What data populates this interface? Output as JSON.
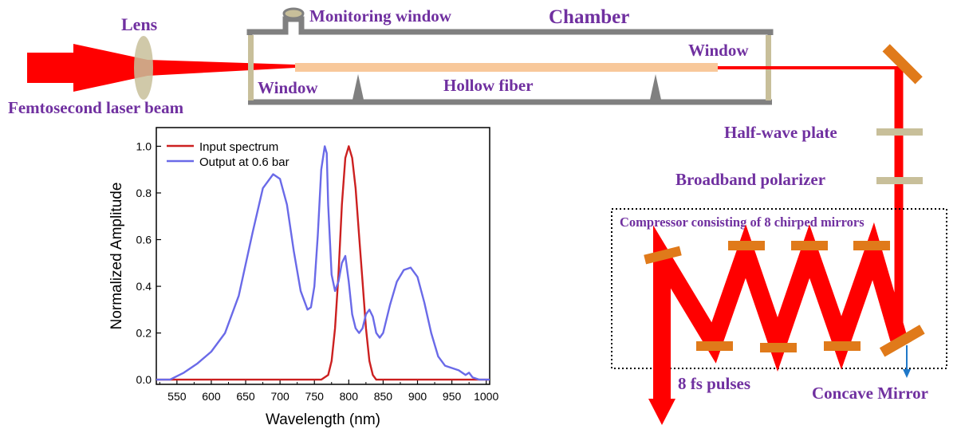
{
  "labels": {
    "lens": "Lens",
    "laser_beam": "Femtosecond laser beam",
    "monitoring_window": "Monitoring window",
    "chamber": "Chamber",
    "window_left": "Window",
    "window_right": "Window",
    "hollow_fiber": "Hollow fiber",
    "half_wave_plate": "Half-wave plate",
    "polarizer": "Broadband polarizer",
    "compressor": "Compressor consisting of 8 chirped mirrors",
    "output_pulses": "8 fs pulses",
    "concave_mirror": "Concave Mirror"
  },
  "colors": {
    "label": "#7030a0",
    "beam": "#ff0000",
    "fiber": "#f8c89a",
    "mirror": "#e07a1a",
    "chamber_wall": "#808080",
    "window": "#c8bf9a",
    "input_series": "#cc2020",
    "output_series": "#6a6ae8",
    "arrow": "#1f78c8"
  },
  "chart_data": {
    "type": "line",
    "xlabel": "Wavelength (nm)",
    "ylabel": "Normalized Amplitude",
    "xlim": [
      520,
      1005
    ],
    "ylim": [
      -0.02,
      1.08
    ],
    "xticks": [
      550,
      600,
      650,
      700,
      750,
      800,
      850,
      900,
      950,
      1000
    ],
    "yticks": [
      0.0,
      0.2,
      0.4,
      0.6,
      0.8,
      1.0
    ],
    "ytick_labels": [
      "0.0",
      "0.2",
      "0.4",
      "0.6",
      "0.8",
      "1.0"
    ],
    "legend_position": "top-left",
    "series": [
      {
        "name": "Input spectrum",
        "color": "#cc2020",
        "x": [
          520,
          760,
          770,
          775,
          780,
          785,
          790,
          795,
          800,
          805,
          810,
          815,
          820,
          825,
          830,
          835,
          840,
          1005
        ],
        "y": [
          0.0,
          0.0,
          0.02,
          0.08,
          0.22,
          0.45,
          0.75,
          0.95,
          1.0,
          0.95,
          0.82,
          0.62,
          0.42,
          0.22,
          0.08,
          0.02,
          0.0,
          0.0
        ]
      },
      {
        "name": "Output at 0.6 bar",
        "color": "#6a6ae8",
        "x": [
          520,
          540,
          560,
          580,
          600,
          620,
          640,
          660,
          675,
          690,
          700,
          710,
          720,
          730,
          740,
          745,
          750,
          755,
          760,
          765,
          768,
          770,
          775,
          780,
          785,
          790,
          795,
          800,
          805,
          810,
          815,
          820,
          825,
          830,
          835,
          840,
          845,
          850,
          860,
          870,
          880,
          890,
          900,
          910,
          920,
          930,
          940,
          950,
          960,
          970,
          975,
          980,
          990,
          1005
        ],
        "y": [
          0.0,
          0.0,
          0.03,
          0.07,
          0.12,
          0.2,
          0.36,
          0.63,
          0.82,
          0.88,
          0.86,
          0.75,
          0.55,
          0.38,
          0.3,
          0.31,
          0.4,
          0.62,
          0.9,
          1.0,
          0.97,
          0.75,
          0.45,
          0.38,
          0.42,
          0.5,
          0.53,
          0.42,
          0.28,
          0.22,
          0.2,
          0.22,
          0.28,
          0.3,
          0.27,
          0.2,
          0.18,
          0.2,
          0.32,
          0.42,
          0.47,
          0.48,
          0.44,
          0.33,
          0.2,
          0.1,
          0.06,
          0.05,
          0.04,
          0.02,
          0.03,
          0.01,
          0.0,
          0.0
        ]
      }
    ]
  }
}
